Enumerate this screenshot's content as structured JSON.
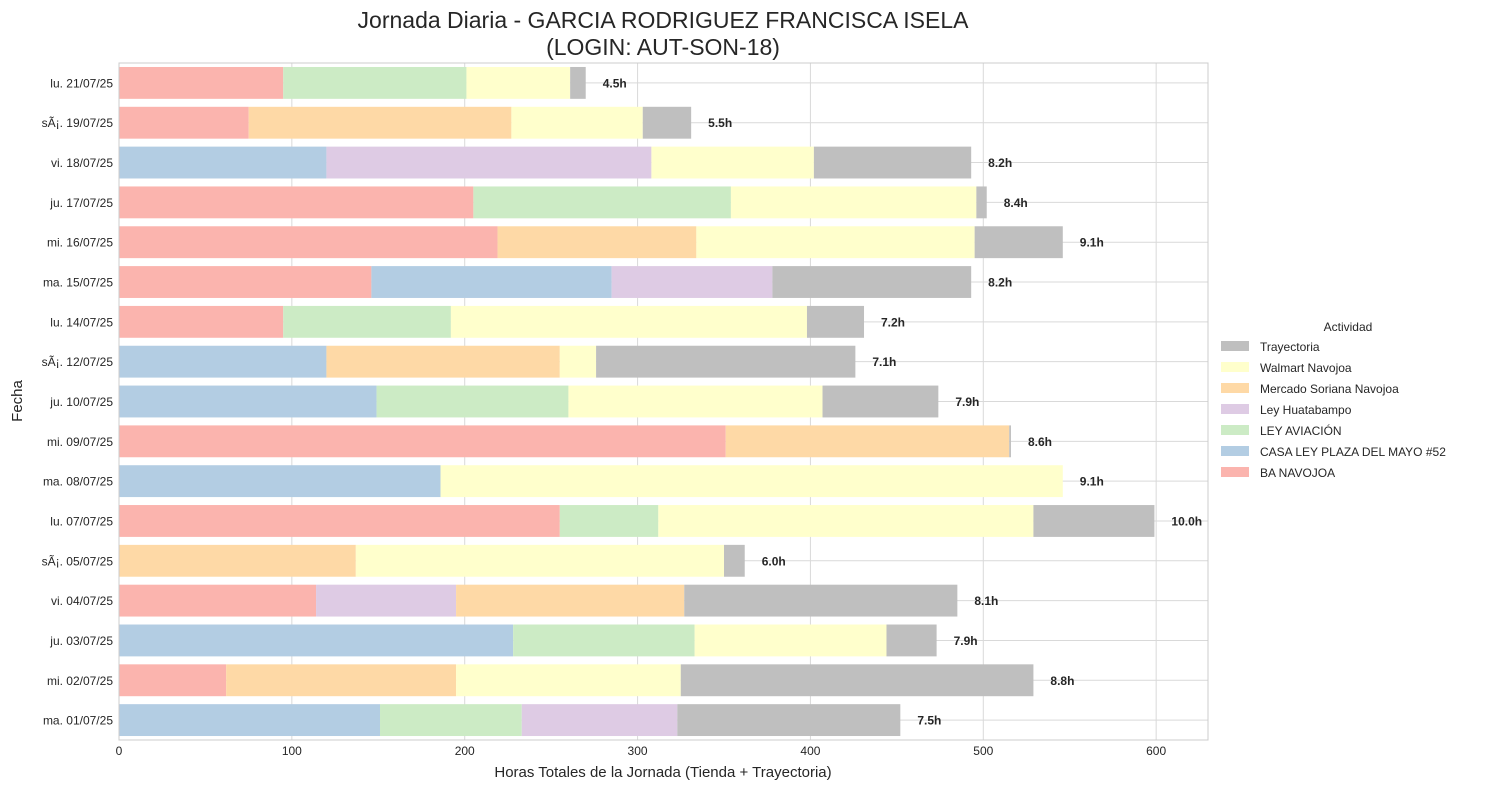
{
  "chart_data": {
    "type": "bar",
    "orientation": "horizontal",
    "stacked": true,
    "title_line1": "Jornada Diaria - GARCIA RODRIGUEZ FRANCISCA ISELA",
    "title_line2": "(LOGIN: AUT-SON-18)",
    "xlabel": "Horas Totales de la Jornada (Tienda + Trayectoria)",
    "ylabel": "Fecha",
    "xlim": [
      0,
      630
    ],
    "xticks": [
      0,
      100,
      200,
      300,
      400,
      500,
      600
    ],
    "grid": true,
    "legend": {
      "title": "Actividad",
      "placement": "right"
    },
    "series": [
      {
        "name": "Trayectoria",
        "color": "#bfbfbf"
      },
      {
        "name": "Walmart Navojoa",
        "color": "#ffffcc"
      },
      {
        "name": "Mercado Soriana Navojoa",
        "color": "#fed9a6"
      },
      {
        "name": "Ley Huatabampo",
        "color": "#decbe4"
      },
      {
        "name": "LEY AVIACIÓN",
        "color": "#ccebc5"
      },
      {
        "name": "CASA LEY PLAZA DEL MAYO #52",
        "color": "#b3cde3"
      },
      {
        "name": "BA NAVOJOA",
        "color": "#fbb4ae"
      }
    ],
    "rows": [
      {
        "date": "lu. 21/07/25",
        "label": "4.5h",
        "segments": [
          [
            "BA NAVOJOA",
            95
          ],
          [
            "LEY AVIACIÓN",
            106
          ],
          [
            "Walmart Navojoa",
            60
          ],
          [
            "Trayectoria",
            9
          ]
        ]
      },
      {
        "date": "sÃ¡. 19/07/25",
        "label": "5.5h",
        "segments": [
          [
            "BA NAVOJOA",
            75
          ],
          [
            "Mercado Soriana Navojoa",
            152
          ],
          [
            "Walmart Navojoa",
            76
          ],
          [
            "Trayectoria",
            28
          ]
        ]
      },
      {
        "date": "vi. 18/07/25",
        "label": "8.2h",
        "segments": [
          [
            "CASA LEY PLAZA DEL MAYO #52",
            120
          ],
          [
            "Ley Huatabampo",
            188
          ],
          [
            "Walmart Navojoa",
            94
          ],
          [
            "Trayectoria",
            91
          ]
        ]
      },
      {
        "date": "ju. 17/07/25",
        "label": "8.4h",
        "segments": [
          [
            "BA NAVOJOA",
            205
          ],
          [
            "LEY AVIACIÓN",
            149
          ],
          [
            "Walmart Navojoa",
            142
          ],
          [
            "Trayectoria",
            6
          ]
        ]
      },
      {
        "date": "mi. 16/07/25",
        "label": "9.1h",
        "segments": [
          [
            "BA NAVOJOA",
            219
          ],
          [
            "Mercado Soriana Navojoa",
            115
          ],
          [
            "Walmart Navojoa",
            161
          ],
          [
            "Trayectoria",
            51
          ]
        ]
      },
      {
        "date": "ma. 15/07/25",
        "label": "8.2h",
        "segments": [
          [
            "BA NAVOJOA",
            146
          ],
          [
            "CASA LEY PLAZA DEL MAYO #52",
            139
          ],
          [
            "Ley Huatabampo",
            93
          ],
          [
            "Trayectoria",
            115
          ]
        ]
      },
      {
        "date": "lu. 14/07/25",
        "label": "7.2h",
        "segments": [
          [
            "BA NAVOJOA",
            95
          ],
          [
            "LEY AVIACIÓN",
            97
          ],
          [
            "Walmart Navojoa",
            206
          ],
          [
            "Trayectoria",
            33
          ]
        ]
      },
      {
        "date": "sÃ¡. 12/07/25",
        "label": "7.1h",
        "segments": [
          [
            "CASA LEY PLAZA DEL MAYO #52",
            120
          ],
          [
            "Mercado Soriana Navojoa",
            135
          ],
          [
            "Walmart Navojoa",
            21
          ],
          [
            "Trayectoria",
            150
          ]
        ]
      },
      {
        "date": "ju. 10/07/25",
        "label": "7.9h",
        "segments": [
          [
            "CASA LEY PLAZA DEL MAYO #52",
            149
          ],
          [
            "LEY AVIACIÓN",
            111
          ],
          [
            "Walmart Navojoa",
            147
          ],
          [
            "Trayectoria",
            67
          ]
        ]
      },
      {
        "date": "mi. 09/07/25",
        "label": "8.6h",
        "segments": [
          [
            "BA NAVOJOA",
            351
          ],
          [
            "Mercado Soriana Navojoa",
            164
          ],
          [
            "Trayectoria",
            1
          ]
        ]
      },
      {
        "date": "ma. 08/07/25",
        "label": "9.1h",
        "segments": [
          [
            "CASA LEY PLAZA DEL MAYO #52",
            186
          ],
          [
            "Walmart Navojoa",
            360
          ]
        ]
      },
      {
        "date": "lu. 07/07/25",
        "label": "10.0h",
        "segments": [
          [
            "BA NAVOJOA",
            255
          ],
          [
            "LEY AVIACIÓN",
            57
          ],
          [
            "Walmart Navojoa",
            217
          ],
          [
            "Trayectoria",
            70
          ]
        ]
      },
      {
        "date": "sÃ¡. 05/07/25",
        "label": "6.0h",
        "segments": [
          [
            "Mercado Soriana Navojoa",
            137
          ],
          [
            "Walmart Navojoa",
            213
          ],
          [
            "Trayectoria",
            12
          ]
        ]
      },
      {
        "date": "vi. 04/07/25",
        "label": "8.1h",
        "segments": [
          [
            "BA NAVOJOA",
            114
          ],
          [
            "Ley Huatabampo",
            81
          ],
          [
            "Mercado Soriana Navojoa",
            132
          ],
          [
            "Trayectoria",
            158
          ]
        ]
      },
      {
        "date": "ju. 03/07/25",
        "label": "7.9h",
        "segments": [
          [
            "CASA LEY PLAZA DEL MAYO #52",
            228
          ],
          [
            "LEY AVIACIÓN",
            105
          ],
          [
            "Walmart Navojoa",
            111
          ],
          [
            "Trayectoria",
            29
          ]
        ]
      },
      {
        "date": "mi. 02/07/25",
        "label": "8.8h",
        "segments": [
          [
            "BA NAVOJOA",
            62
          ],
          [
            "Mercado Soriana Navojoa",
            133
          ],
          [
            "Walmart Navojoa",
            130
          ],
          [
            "Trayectoria",
            204
          ]
        ]
      },
      {
        "date": "ma. 01/07/25",
        "label": "7.5h",
        "segments": [
          [
            "CASA LEY PLAZA DEL MAYO #52",
            151
          ],
          [
            "LEY AVIACIÓN",
            82
          ],
          [
            "Ley Huatabampo",
            90
          ],
          [
            "Trayectoria",
            129
          ]
        ]
      }
    ]
  }
}
